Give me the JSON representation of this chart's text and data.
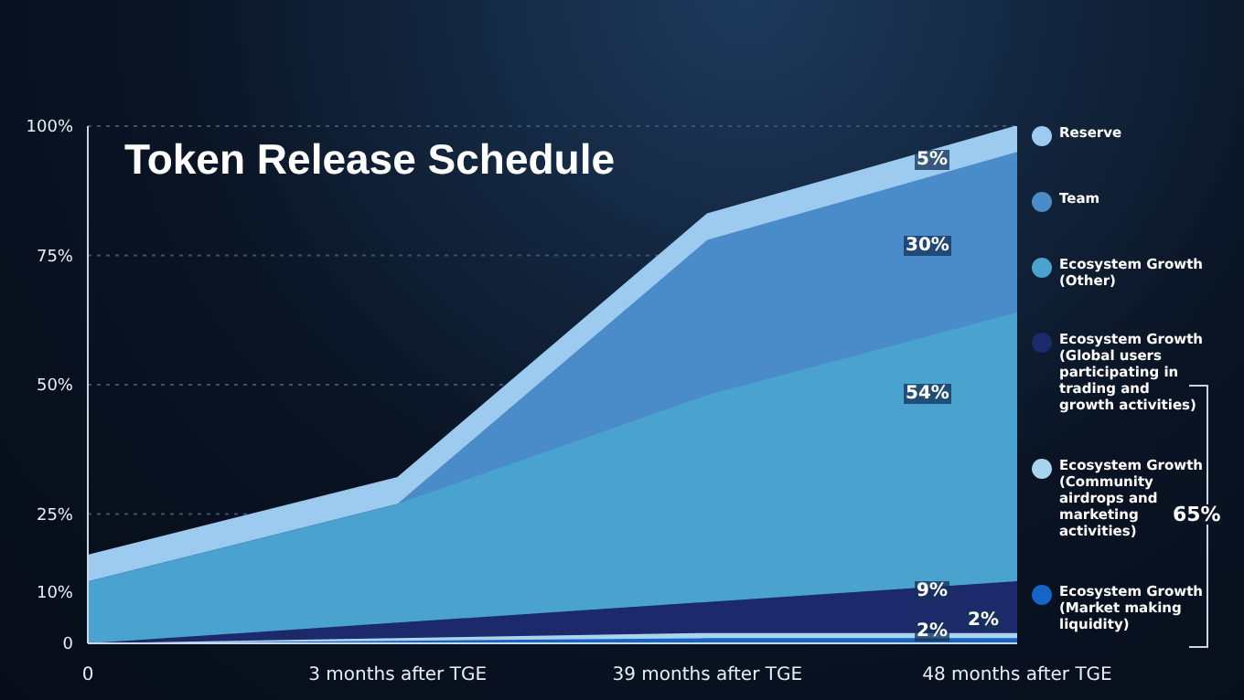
{
  "chart_data": {
    "type": "area",
    "title": "Token Release Schedule",
    "stacked": true,
    "categories": [
      "0",
      "3 months after TGE",
      "39 months after TGE",
      "48 months after TGE"
    ],
    "series": [
      {
        "name": "Ecosystem Growth (Market making liquidity)",
        "color": "#1565c8",
        "values": [
          0,
          0.5,
          1,
          1
        ]
      },
      {
        "name": "Ecosystem Growth (Community airdrops and marketing activities)",
        "color": "#a9d4ee",
        "values": [
          0,
          0.5,
          1,
          1
        ]
      },
      {
        "name": "Ecosystem Growth (Global users participating in trading and growth activities)",
        "color": "#1c2a6b",
        "values": [
          0,
          3,
          6,
          10
        ]
      },
      {
        "name": "Ecosystem Growth (Other)",
        "color": "#4aa3cf",
        "values": [
          12,
          23,
          40,
          52
        ]
      },
      {
        "name": "Team",
        "color": "#4a8bc9",
        "values": [
          0,
          0,
          30,
          31
        ]
      },
      {
        "name": "Reserve",
        "color": "#9ccbef",
        "values": [
          5,
          5,
          5,
          5
        ]
      }
    ],
    "ylim": [
      0,
      100
    ],
    "yticks": [
      0,
      {
        "value": 10,
        "label": "10%"
      },
      {
        "value": 25,
        "label": "25%"
      },
      {
        "value": 50,
        "label": "50%"
      },
      {
        "value": 75,
        "label": "75%"
      },
      {
        "value": 100,
        "label": "100%"
      }
    ],
    "grid": "y",
    "legend": "right",
    "annotations": [
      "5%",
      "30%",
      "54%",
      "9%",
      "2%",
      "2%",
      "65%"
    ]
  }
}
